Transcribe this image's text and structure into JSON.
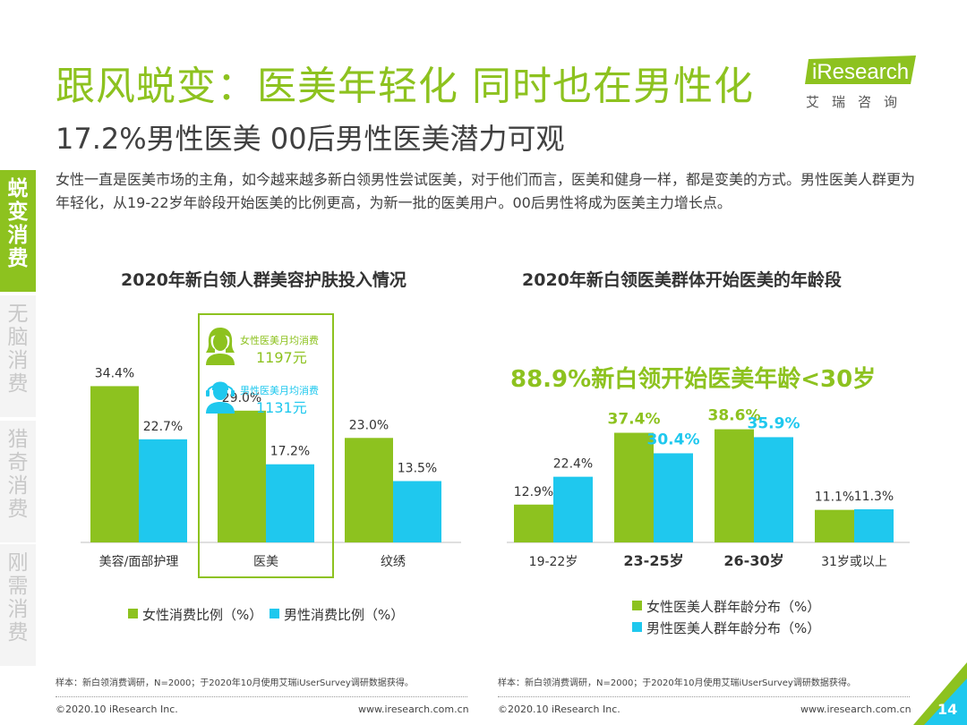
{
  "header": {
    "title": "跟风蜕变：医美年轻化 同时也在男性化",
    "subtitle": "17.2%男性医美 00后男性医美潜力可观",
    "logo_en": "iResearch",
    "logo_cn": "艾瑞咨询"
  },
  "intro": "女性一直是医美市场的主角，如今越来越多新白领男性尝试医美，对于他们而言，医美和健身一样，都是变美的方式。男性医美人群更为年轻化，从19-22岁年龄段开始医美的比例更高，为新一批的医美用户。00后男性将成为医美主力增长点。",
  "sidebar": [
    {
      "label": "蜕变消费",
      "active": true
    },
    {
      "label": "无脑消费",
      "active": false
    },
    {
      "label": "猎奇消费",
      "active": false
    },
    {
      "label": "刚需消费",
      "active": false
    }
  ],
  "colors": {
    "green": "#8dc21f",
    "blue": "#1fc8ee",
    "brand": "#8dc21f"
  },
  "callout": {
    "female_label": "女性医美月均消费",
    "female_value": "1197元",
    "male_label": "男性医美月均消费",
    "male_value": "1131元"
  },
  "highlight_text": "88.9%新白领开始医美年龄<30岁",
  "chart_data": [
    {
      "type": "bar",
      "title": "2020年新白领人群美容护肤投入情况",
      "categories": [
        "美容/面部护理",
        "医美",
        "纹绣"
      ],
      "series": [
        {
          "name": "女性消费比例（%）",
          "values": [
            34.4,
            29.0,
            23.0
          ],
          "labels": [
            "34.4%",
            "29.0%",
            "23.0%"
          ]
        },
        {
          "name": "男性消费比例（%）",
          "values": [
            22.7,
            17.2,
            13.5
          ],
          "labels": [
            "22.7%",
            "17.2%",
            "13.5%"
          ]
        }
      ],
      "ylim": [
        0,
        40
      ]
    },
    {
      "type": "bar",
      "title": "2020年新白领医美群体开始医美的年龄段",
      "categories": [
        "19-22岁",
        "23-25岁",
        "26-30岁",
        "31岁或以上"
      ],
      "series": [
        {
          "name": "女性医美人群年龄分布（%）",
          "values": [
            12.9,
            37.4,
            38.6,
            11.1
          ],
          "labels": [
            "12.9%",
            "37.4%",
            "38.6%",
            "11.1%"
          ]
        },
        {
          "name": "男性医美人群年龄分布（%）",
          "values": [
            22.4,
            30.4,
            35.9,
            11.3
          ],
          "labels": [
            "22.4%",
            "30.4%",
            "35.9%",
            "11.3%"
          ]
        }
      ],
      "ylim": [
        0,
        40
      ]
    }
  ],
  "footer": {
    "note": "样本：新白领消费调研，N=2000；于2020年10月使用艾瑞iUserSurvey调研数据获得。",
    "copyright": "©2020.10 iResearch Inc.",
    "url": "www.iresearch.com.cn",
    "page": "14"
  }
}
